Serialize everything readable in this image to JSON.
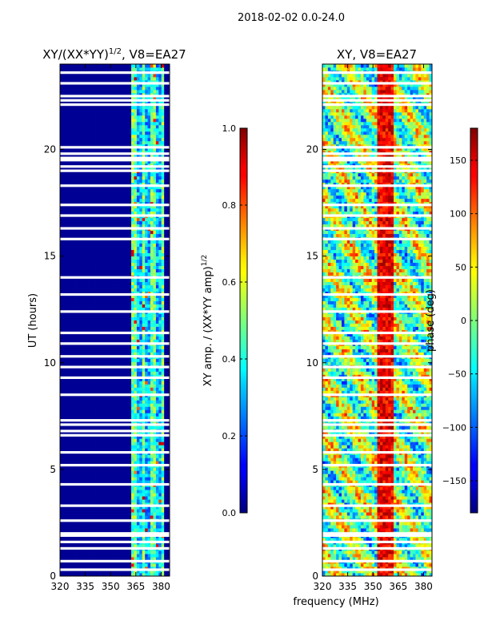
{
  "figure": {
    "suptitle": "2018-02-02 0.0-24.0",
    "xlabel_shared": "frequency (MHz)"
  },
  "chart_data": [
    {
      "type": "heatmap",
      "title": "XY/(XX*YY)",
      "title_sup": "1/2",
      "title_suffix": ", V8=EA27",
      "ylabel": "UT (hours)",
      "xlim": [
        320,
        385
      ],
      "ylim": [
        0,
        24
      ],
      "xticks": [
        320,
        335,
        350,
        365,
        380
      ],
      "yticks": [
        0,
        5,
        10,
        15,
        20
      ],
      "colorbar": {
        "label": "XY amp. / (XX*YY amp)",
        "label_sup": "1/2",
        "range": [
          0.0,
          1.0
        ],
        "ticks": [
          "0.0",
          "0.2",
          "0.4",
          "0.6",
          "0.8",
          "1.0"
        ],
        "colormap": "jet"
      },
      "band_freq_range": [
        362,
        382
      ],
      "background_value": 0.02,
      "blank_rows_ut": [
        0.3,
        0.7,
        1.3,
        1.6,
        1.9,
        2.0,
        2.6,
        3.3,
        4.3,
        5.2,
        5.8,
        6.6,
        6.8,
        7.1,
        7.3,
        8.5,
        9.3,
        9.8,
        10.3,
        10.9,
        11.4,
        12.4,
        13.2,
        14.0,
        15.8,
        16.3,
        16.9,
        17.4,
        18.3,
        19.0,
        19.2,
        19.5,
        19.6,
        19.8,
        20.1,
        22.1,
        22.3,
        22.5,
        23.1,
        23.6
      ]
    },
    {
      "type": "heatmap",
      "title": "XY, V8=EA27",
      "xlim": [
        320,
        385
      ],
      "ylim": [
        0,
        24
      ],
      "xticks": [
        320,
        335,
        350,
        365,
        380
      ],
      "yticks": [
        0,
        5,
        10,
        15,
        20
      ],
      "colorbar": {
        "label": "phase (deg)",
        "range": [
          -180,
          180
        ],
        "ticks": [
          "-150",
          "-100",
          "-50",
          "0",
          "50",
          "100",
          "150"
        ],
        "colormap": "jet"
      },
      "red_band_freq_range": [
        352,
        363
      ],
      "blank_rows_ut": [
        0.3,
        0.7,
        1.3,
        1.6,
        1.9,
        2.0,
        2.6,
        3.3,
        4.3,
        5.2,
        5.8,
        6.6,
        6.8,
        7.1,
        7.3,
        8.5,
        9.3,
        9.8,
        10.3,
        10.9,
        11.4,
        12.4,
        13.2,
        14.0,
        15.8,
        16.3,
        16.9,
        17.4,
        18.3,
        19.0,
        19.2,
        19.5,
        19.6,
        19.8,
        20.1,
        22.1,
        22.3,
        22.5,
        23.1,
        23.6
      ]
    }
  ]
}
